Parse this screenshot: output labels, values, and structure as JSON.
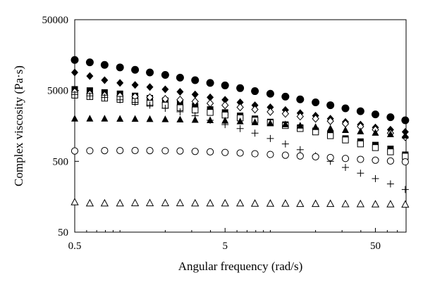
{
  "chart_data": {
    "type": "scatter",
    "title": "",
    "xlabel": "Angular frequency (rad/s)",
    "ylabel": "Complex viscosity (Pa·s)",
    "xscale": "log",
    "yscale": "log",
    "xlim": [
      0.5,
      80
    ],
    "ylim": [
      50,
      50000
    ],
    "x_ticks": [
      {
        "value": 0.5,
        "label": "0.5"
      },
      {
        "value": 5,
        "label": "5"
      },
      {
        "value": 50,
        "label": "50"
      }
    ],
    "y_ticks": [
      {
        "value": 50,
        "label": "50"
      },
      {
        "value": 500,
        "label": "500"
      },
      {
        "value": 5000,
        "label": "5000"
      },
      {
        "value": 50000,
        "label": "50000"
      }
    ],
    "grid": false,
    "legend": "none",
    "x": [
      0.5,
      0.63,
      0.79,
      1.0,
      1.26,
      1.58,
      2.0,
      2.51,
      3.16,
      3.98,
      5.0,
      6.3,
      7.9,
      10.0,
      12.6,
      15.8,
      20.0,
      25.1,
      31.6,
      39.8,
      50.0,
      63.0,
      79.0
    ],
    "series": [
      {
        "marker": "filled-circle",
        "values": [
          13500,
          12500,
          11500,
          10600,
          9800,
          9000,
          8300,
          7600,
          7000,
          6400,
          5900,
          5400,
          4900,
          4500,
          4100,
          3750,
          3400,
          3100,
          2800,
          2550,
          2300,
          2100,
          1900
        ]
      },
      {
        "marker": "filled-diamond",
        "values": [
          9000,
          8000,
          7000,
          6400,
          6000,
          5600,
          5200,
          4800,
          4400,
          4000,
          3700,
          3400,
          3100,
          2900,
          2650,
          2400,
          2200,
          2000,
          1800,
          1650,
          1500,
          1400,
          1300
        ]
      },
      {
        "marker": "filled-square",
        "values": [
          5200,
          5000,
          4700,
          4500,
          4200,
          3900,
          3600,
          3300,
          3000,
          2700,
          2450,
          2200,
          2000,
          1800,
          1650,
          1500,
          1350,
          1200,
          1050,
          950,
          850,
          750,
          620
        ]
      },
      {
        "marker": "open-diamond",
        "values": [
          4800,
          4500,
          4300,
          4200,
          4100,
          4000,
          3800,
          3700,
          3500,
          3300,
          3100,
          2900,
          2700,
          2500,
          2350,
          2150,
          2000,
          1850,
          1700,
          1550,
          1400,
          1250,
          1100
        ]
      },
      {
        "marker": "open-square",
        "values": [
          4300,
          4100,
          3900,
          3750,
          3500,
          3300,
          3100,
          2850,
          2650,
          2450,
          2250,
          2050,
          1900,
          1750,
          1600,
          1450,
          1300,
          1150,
          1000,
          880,
          780,
          680,
          590
        ]
      },
      {
        "marker": "plus",
        "values": [
          4400,
          4200,
          4000,
          3700,
          3400,
          3100,
          2800,
          2500,
          2200,
          1900,
          1650,
          1450,
          1250,
          1050,
          880,
          730,
          600,
          500,
          410,
          340,
          285,
          240,
          200
        ]
      },
      {
        "marker": "filled-triangle",
        "values": [
          2000,
          2000,
          2000,
          1990,
          1980,
          1970,
          1960,
          1940,
          1920,
          1900,
          1870,
          1830,
          1780,
          1720,
          1660,
          1590,
          1520,
          1450,
          1380,
          1320,
          1260,
          1200,
          1150
        ]
      },
      {
        "marker": "open-circle",
        "values": [
          700,
          705,
          708,
          710,
          710,
          708,
          705,
          700,
          690,
          680,
          668,
          655,
          640,
          625,
          610,
          595,
          580,
          565,
          548,
          533,
          518,
          505,
          492
        ]
      },
      {
        "marker": "open-triangle",
        "values": [
          133,
          128,
          128,
          128,
          129,
          129,
          129,
          129,
          128,
          128,
          128,
          128,
          127,
          127,
          127,
          126,
          126,
          126,
          125,
          125,
          124,
          124,
          123
        ]
      }
    ]
  }
}
